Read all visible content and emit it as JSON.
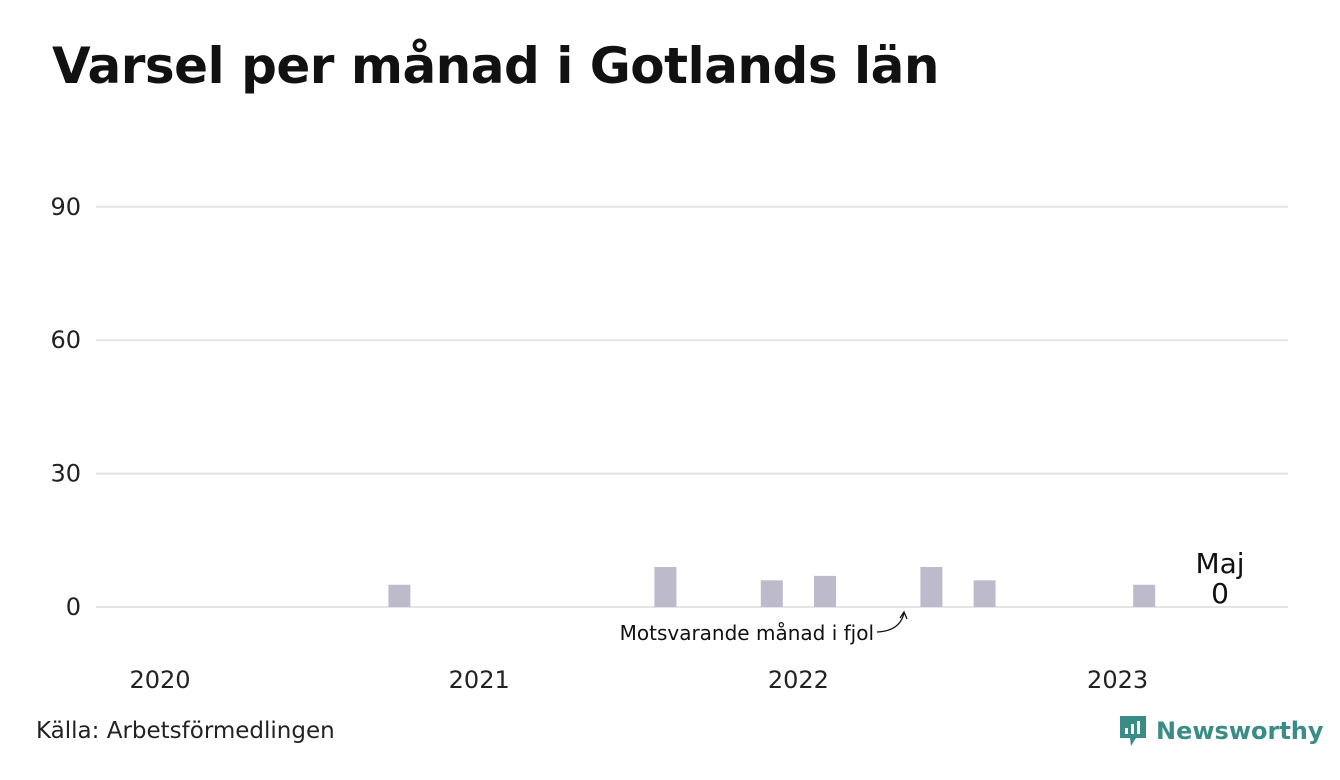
{
  "title": "Varsel per månad i Gotlands län",
  "source": "Källa: Arbetsförmedlingen",
  "brand": {
    "name": "Newsworthy",
    "icon": "newsworthy-logo-icon",
    "color": "#3a8d86"
  },
  "annotations": {
    "comparison": "Motsvarande månad i fjol",
    "latest_month": "Maj",
    "latest_value": "0"
  },
  "colors": {
    "bar": "#bdbbcb",
    "highlight": "#4a4a4a",
    "grid": "#e4e4e6"
  },
  "chart_data": {
    "type": "bar",
    "title": "Varsel per månad i Gotlands län",
    "x_tick_labels": [
      "2020",
      "2021",
      "2022",
      "2023"
    ],
    "y_ticks": [
      0,
      30,
      60,
      90
    ],
    "ylim": [
      0,
      110
    ],
    "grid": true,
    "highlight_month": "2022-05",
    "latest_month": "2023-05",
    "months": [
      "2020-01",
      "2020-02",
      "2020-03",
      "2020-04",
      "2020-05",
      "2020-06",
      "2020-07",
      "2020-08",
      "2020-09",
      "2020-10",
      "2020-11",
      "2020-12",
      "2021-01",
      "2021-02",
      "2021-03",
      "2021-04",
      "2021-05",
      "2021-06",
      "2021-07",
      "2021-08",
      "2021-09",
      "2021-10",
      "2021-11",
      "2021-12",
      "2022-01",
      "2022-02",
      "2022-03",
      "2022-04",
      "2022-05",
      "2022-06",
      "2022-07",
      "2022-08",
      "2022-09",
      "2022-10",
      "2022-11",
      "2022-12",
      "2023-01",
      "2023-02",
      "2023-03",
      "2023-04",
      "2023-05"
    ],
    "values": [
      0,
      0,
      0,
      0,
      0,
      0,
      0,
      0,
      0,
      5,
      0,
      0,
      0,
      0,
      0,
      0,
      0,
      0,
      0,
      9,
      0,
      0,
      0,
      6,
      0,
      7,
      0,
      0,
      0,
      9,
      0,
      6,
      0,
      0,
      0,
      0,
      0,
      5,
      0,
      0,
      0
    ]
  }
}
